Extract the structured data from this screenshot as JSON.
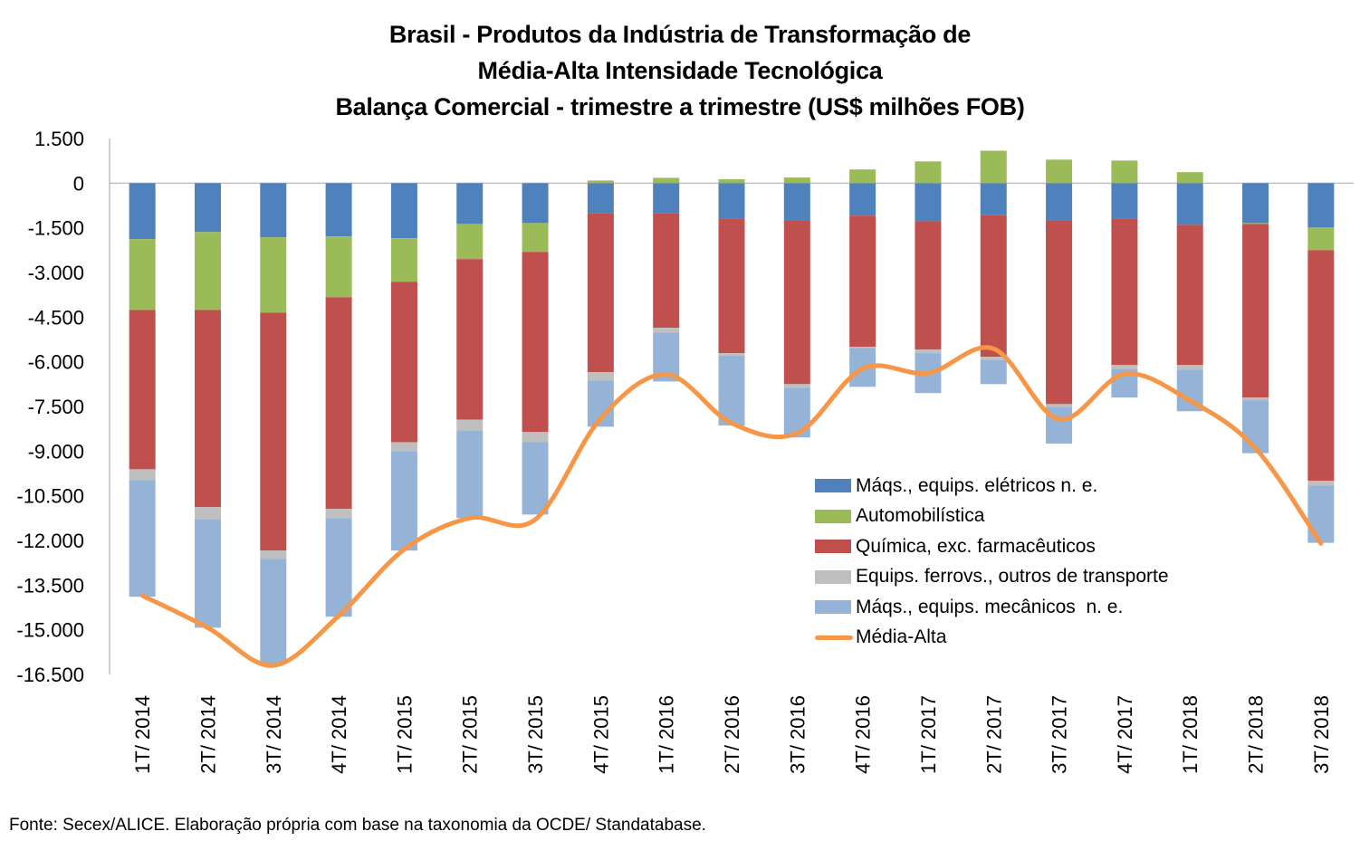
{
  "chart_data": {
    "type": "bar",
    "subtype": "stacked-bar-with-line",
    "title": [
      "Brasil - Produtos da Indústria de Transformação de",
      "Média-Alta Intensidade Tecnológica",
      "Balança Comercial - trimestre a trimestre (US$ milhões FOB)"
    ],
    "xlabel": "",
    "ylabel": "",
    "ylim": [
      -16500,
      1500
    ],
    "yticks": [
      1500,
      0,
      -1500,
      -3000,
      -4500,
      -6000,
      -7500,
      -9000,
      -10500,
      -12000,
      -13500,
      -15000,
      -16500
    ],
    "ytick_labels": [
      "1.500",
      "0",
      "-1.500",
      "-3.000",
      "-4.500",
      "-6.000",
      "-7.500",
      "-9.000",
      "-10.500",
      "-12.000",
      "-13.500",
      "-15.000",
      "-16.500"
    ],
    "grid": false,
    "legend_position": "bottom-right",
    "categories": [
      "1T/ 2014",
      "2T/ 2014",
      "3T/ 2014",
      "4T/ 2014",
      "1T/ 2015",
      "2T/ 2015",
      "3T/ 2015",
      "4T/ 2015",
      "1T/ 2016",
      "2T/ 2016",
      "3T/ 2016",
      "4T/ 2016",
      "1T/ 2017",
      "2T/ 2017",
      "3T/ 2017",
      "4T/ 2017",
      "1T/ 2018",
      "2T/ 2018",
      "3T/ 2018"
    ],
    "series": [
      {
        "name": "Máqs., equips. elétricos n. e.",
        "kind": "bar",
        "color": "#4F81BD",
        "values": [
          -1880,
          -1640,
          -1820,
          -1790,
          -1850,
          -1370,
          -1340,
          -1000,
          -1000,
          -1180,
          -1240,
          -1090,
          -1280,
          -1060,
          -1240,
          -1180,
          -1400,
          -1340,
          -1490
        ]
      },
      {
        "name": "Automobilística",
        "kind": "bar",
        "color": "#9BBB59",
        "values": [
          -2380,
          -2620,
          -2530,
          -2040,
          -1460,
          -1180,
          -970,
          90,
          180,
          130,
          190,
          460,
          730,
          1090,
          790,
          760,
          370,
          -30,
          -760
        ]
      },
      {
        "name": "Química, exc. farmacêuticos",
        "kind": "bar",
        "color": "#C0504D",
        "values": [
          -5350,
          -6620,
          -7990,
          -7110,
          -5390,
          -5390,
          -6050,
          -5350,
          -3860,
          -4530,
          -5510,
          -4410,
          -4310,
          -4770,
          -6180,
          -4930,
          -4710,
          -5830,
          -7750
        ]
      },
      {
        "name": "Equips. ferrovs., outros de transporte",
        "kind": "bar",
        "color": "#BFBFBF",
        "values": [
          -360,
          -420,
          -280,
          -310,
          -300,
          -360,
          -340,
          -280,
          -160,
          -90,
          -120,
          -40,
          -120,
          -120,
          -90,
          -120,
          -150,
          -90,
          -160
        ]
      },
      {
        "name": "Máqs., equips. mecânicos  n. e.",
        "kind": "bar",
        "color": "#95B3D7",
        "values": [
          -3920,
          -3630,
          -3520,
          -3310,
          -3340,
          -2950,
          -2430,
          -1550,
          -1640,
          -2340,
          -1670,
          -1300,
          -1340,
          -800,
          -1240,
          -970,
          -1400,
          -1780,
          -1920
        ]
      },
      {
        "name": "Média-Alta",
        "kind": "line",
        "color": "#F79646",
        "values": [
          -13850,
          -14930,
          -16200,
          -14530,
          -12300,
          -11250,
          -11300,
          -7900,
          -6420,
          -8060,
          -8400,
          -6230,
          -6380,
          -5560,
          -7930,
          -6410,
          -7300,
          -8900,
          -12100
        ]
      }
    ]
  },
  "source_note": "Fonte: Secex/ALICE. Elaboração própria com base na taxonomia da OCDE/ Standatabase."
}
